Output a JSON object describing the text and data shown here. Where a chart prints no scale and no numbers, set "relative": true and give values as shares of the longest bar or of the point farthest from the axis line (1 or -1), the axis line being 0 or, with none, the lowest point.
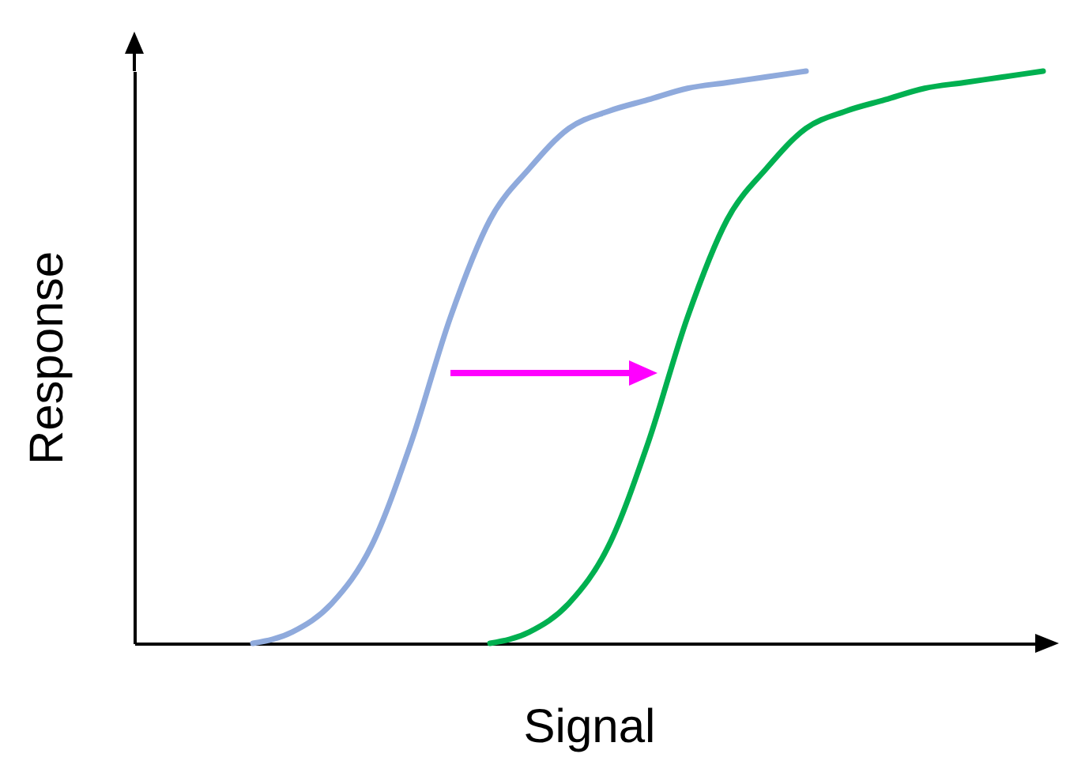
{
  "chart_data": {
    "type": "line",
    "xlabel": "Signal",
    "ylabel": "Response",
    "relative": true,
    "tick_labels": false,
    "grid": false,
    "legend": false,
    "marker": "none",
    "line_style": "solid",
    "categories": [
      null,
      null,
      null,
      null,
      null,
      null,
      null,
      null,
      null,
      null,
      null,
      null,
      null,
      null,
      null,
      null,
      null,
      null,
      null,
      null,
      null,
      null,
      null,
      null
    ],
    "series": [
      {
        "color": "#8faadc",
        "values": [
          null,
          null,
          null,
          0,
          0.02,
          0.07,
          0.17,
          0.35,
          0.57,
          0.74,
          0.83,
          0.9,
          0.93,
          0.95,
          0.97,
          0.98,
          0.99,
          1,
          null,
          null,
          null,
          null,
          null,
          null
        ]
      },
      {
        "color": "#00b050",
        "values": [
          null,
          null,
          null,
          null,
          null,
          null,
          null,
          null,
          null,
          0,
          0.02,
          0.07,
          0.17,
          0.35,
          0.57,
          0.74,
          0.83,
          0.9,
          0.93,
          0.95,
          0.97,
          0.98,
          0.99,
          1
        ]
      }
    ]
  }
}
